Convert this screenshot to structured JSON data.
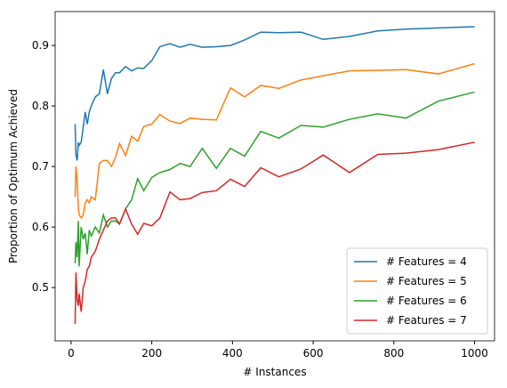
{
  "chart_data": {
    "type": "line",
    "x_label": "# Instances",
    "y_label": "Proportion of Optimum Achieved",
    "x": [
      10,
      12,
      15,
      18,
      20,
      25,
      30,
      35,
      40,
      45,
      50,
      60,
      70,
      80,
      90,
      100,
      110,
      120,
      135,
      150,
      165,
      180,
      200,
      220,
      245,
      270,
      295,
      325,
      360,
      395,
      430,
      470,
      515,
      570,
      625,
      690,
      760,
      830,
      910,
      1000
    ],
    "series": [
      {
        "name": "# Features = 4",
        "color": "#1f77b4",
        "values": [
          0.77,
          0.72,
          0.71,
          0.74,
          0.735,
          0.74,
          0.765,
          0.79,
          0.77,
          0.79,
          0.8,
          0.815,
          0.82,
          0.86,
          0.82,
          0.845,
          0.855,
          0.855,
          0.865,
          0.858,
          0.863,
          0.862,
          0.875,
          0.898,
          0.903,
          0.897,
          0.902,
          0.897,
          0.898,
          0.9,
          0.909,
          0.922,
          0.921,
          0.922,
          0.91,
          0.915,
          0.924,
          0.927,
          0.929,
          0.931
        ]
      },
      {
        "name": "# Features = 5",
        "color": "#ff7f0e",
        "values": [
          0.65,
          0.7,
          0.675,
          0.63,
          0.62,
          0.615,
          0.62,
          0.64,
          0.645,
          0.64,
          0.65,
          0.645,
          0.705,
          0.71,
          0.71,
          0.7,
          0.715,
          0.738,
          0.718,
          0.75,
          0.742,
          0.766,
          0.77,
          0.786,
          0.775,
          0.771,
          0.78,
          0.778,
          0.777,
          0.83,
          0.815,
          0.834,
          0.829,
          0.843,
          0.85,
          0.858,
          0.859,
          0.86,
          0.853,
          0.87
        ]
      },
      {
        "name": "# Features = 6",
        "color": "#2ca02c",
        "values": [
          0.54,
          0.575,
          0.55,
          0.61,
          0.535,
          0.6,
          0.58,
          0.59,
          0.555,
          0.595,
          0.585,
          0.6,
          0.59,
          0.62,
          0.6,
          0.61,
          0.61,
          0.605,
          0.63,
          0.645,
          0.68,
          0.66,
          0.682,
          0.69,
          0.695,
          0.705,
          0.7,
          0.73,
          0.697,
          0.73,
          0.717,
          0.758,
          0.747,
          0.768,
          0.765,
          0.778,
          0.787,
          0.78,
          0.808,
          0.823
        ]
      },
      {
        "name": "# Features = 7",
        "color": "#d62728",
        "values": [
          0.44,
          0.525,
          0.48,
          0.47,
          0.49,
          0.46,
          0.5,
          0.51,
          0.53,
          0.535,
          0.55,
          0.56,
          0.58,
          0.595,
          0.61,
          0.615,
          0.615,
          0.605,
          0.63,
          0.605,
          0.588,
          0.606,
          0.602,
          0.615,
          0.658,
          0.645,
          0.647,
          0.657,
          0.66,
          0.679,
          0.667,
          0.698,
          0.683,
          0.696,
          0.719,
          0.69,
          0.72,
          0.722,
          0.728,
          0.74
        ]
      }
    ],
    "xlim": [
      -39.5,
      1049.5
    ],
    "xticks": [
      0,
      200,
      400,
      600,
      800,
      1000
    ],
    "ylim": [
      0.412,
      0.956
    ],
    "yticks": [
      0.5,
      0.6,
      0.7,
      0.8,
      0.9
    ],
    "legend": "lower right"
  }
}
